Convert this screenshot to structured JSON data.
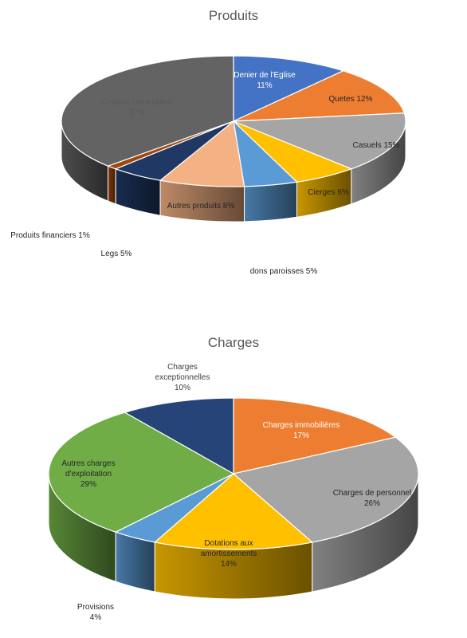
{
  "chart_data": [
    {
      "type": "pie",
      "title": "Produits",
      "slices": [
        {
          "lines": [
            "Denier de l'Eglise",
            "11%"
          ],
          "value": 11,
          "color": "#4472C4"
        },
        {
          "lines": [
            "Quetes 12%"
          ],
          "value": 12,
          "color": "#ED7D31"
        },
        {
          "lines": [
            "Casuels 15%"
          ],
          "value": 15,
          "color": "#A5A5A5"
        },
        {
          "lines": [
            "Cierges 6%"
          ],
          "value": 6,
          "color": "#FFC000"
        },
        {
          "lines": [
            "dons paroisses  5%"
          ],
          "value": 5,
          "color": "#5B9BD5"
        },
        {
          "lines": [
            "Autres produits 8%"
          ],
          "value": 8,
          "color": "#F4B183"
        },
        {
          "lines": [
            "Legs 5%"
          ],
          "value": 5,
          "color": "#203864"
        },
        {
          "lines": [
            "Produits financiers 1%"
          ],
          "value": 1,
          "color": "#9E480E"
        },
        {
          "lines": [
            "Cession immeubles;",
            "37%"
          ],
          "value": 37,
          "color": "#636363"
        }
      ]
    },
    {
      "type": "pie",
      "title": "Charges",
      "slices": [
        {
          "lines": [
            "Charges immobilières",
            "17%"
          ],
          "value": 17,
          "color": "#ED7D31"
        },
        {
          "lines": [
            "Charges de personnel",
            "26%"
          ],
          "value": 26,
          "color": "#A5A5A5"
        },
        {
          "lines": [
            "Dotations aux",
            "amortissements",
            "14%"
          ],
          "value": 14,
          "color": "#FFC000"
        },
        {
          "lines": [
            "Provisions",
            "4%"
          ],
          "value": 4,
          "color": "#5B9BD5"
        },
        {
          "lines": [
            "Autres charges",
            "d'exploitation",
            "29%"
          ],
          "value": 29,
          "color": "#70AD47"
        },
        {
          "lines": [
            "Charges",
            "exceptionnelles",
            "10%"
          ],
          "value": 10,
          "color": "#264478"
        }
      ]
    }
  ]
}
